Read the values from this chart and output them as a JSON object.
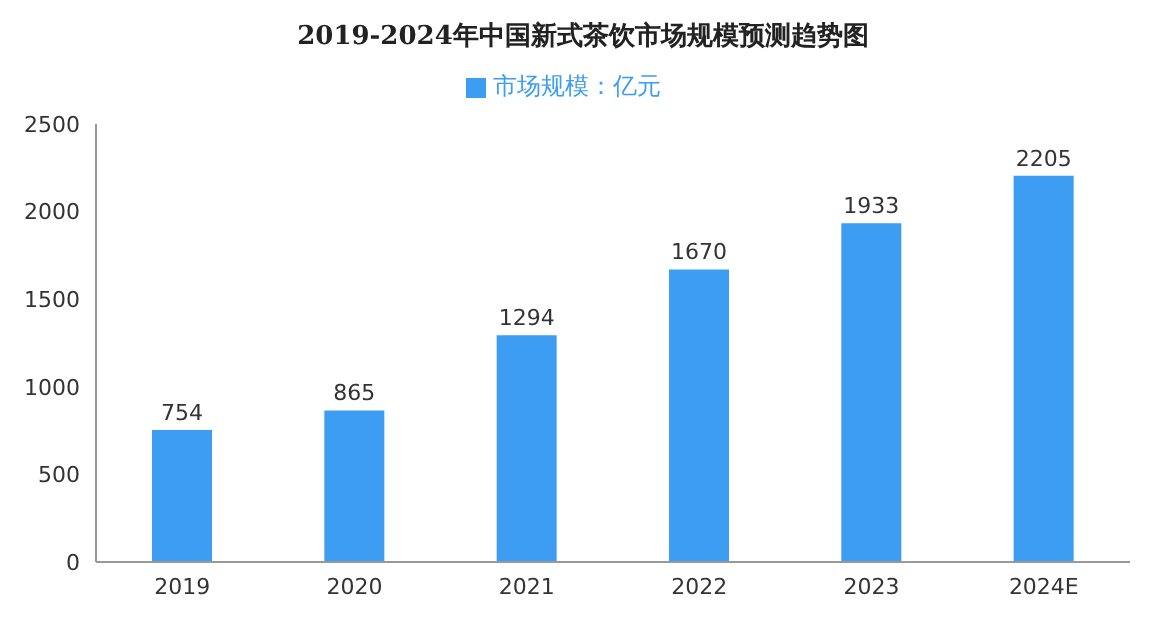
{
  "chart_data": {
    "type": "bar",
    "title": "2019-2024年中国新式茶饮市场规模预测趋势图",
    "categories": [
      "2019",
      "2020",
      "2021",
      "2022",
      "2023",
      "2024E"
    ],
    "series": [
      {
        "name": "市场规模：亿元",
        "color": "#3d9df3",
        "values": [
          754,
          865,
          1294,
          1670,
          1933,
          2205
        ]
      }
    ],
    "ylim": [
      0,
      2500
    ],
    "yticks": [
      0,
      500,
      1000,
      1500,
      2000,
      2500
    ],
    "grid": false,
    "legend": "top",
    "data_labels": true
  }
}
